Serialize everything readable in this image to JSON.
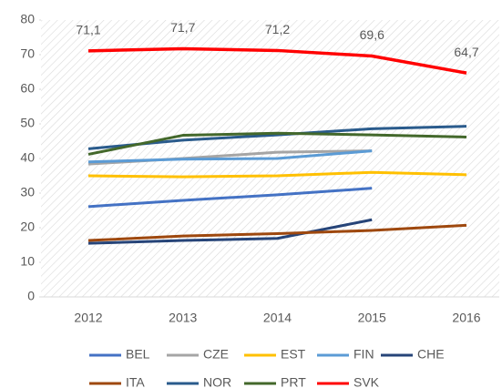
{
  "chart_data": {
    "type": "line",
    "categories": [
      "2012",
      "2013",
      "2014",
      "2015",
      "2016"
    ],
    "ylim": [
      0,
      80
    ],
    "yticks": [
      0,
      10,
      20,
      30,
      40,
      50,
      60,
      70,
      80
    ],
    "legend": "bottom",
    "series": [
      {
        "name": "BEL",
        "color": "#4472c4",
        "values": [
          26.1,
          27.9,
          29.5,
          31.4,
          null
        ]
      },
      {
        "name": "CZE",
        "color": "#a5a5a5",
        "values": [
          38.4,
          40.0,
          41.8,
          42.2,
          null
        ]
      },
      {
        "name": "EST",
        "color": "#ffc000",
        "values": [
          35.0,
          34.7,
          35.0,
          36.0,
          35.3
        ]
      },
      {
        "name": "FIN",
        "color": "#5b9bd5",
        "values": [
          39.0,
          39.8,
          40.0,
          42.2,
          null
        ]
      },
      {
        "name": "CHE",
        "color": "#264478",
        "values": [
          15.5,
          16.3,
          16.9,
          22.3,
          null
        ]
      },
      {
        "name": "ITA",
        "color": "#9e480e",
        "values": [
          16.3,
          17.6,
          18.3,
          19.2,
          20.7
        ]
      },
      {
        "name": "NOR",
        "color": "#2a5b8c",
        "values": [
          42.8,
          45.3,
          46.8,
          48.6,
          49.3
        ]
      },
      {
        "name": "PRT",
        "color": "#43682b",
        "values": [
          41.2,
          46.7,
          47.3,
          46.8,
          46.2
        ]
      },
      {
        "name": "SVK",
        "color": "#ff0000",
        "values": [
          71.1,
          71.7,
          71.2,
          69.6,
          64.7
        ],
        "value_labels": [
          "71,1",
          "71,7",
          "71,2",
          "69,6",
          "64,7"
        ]
      }
    ]
  }
}
